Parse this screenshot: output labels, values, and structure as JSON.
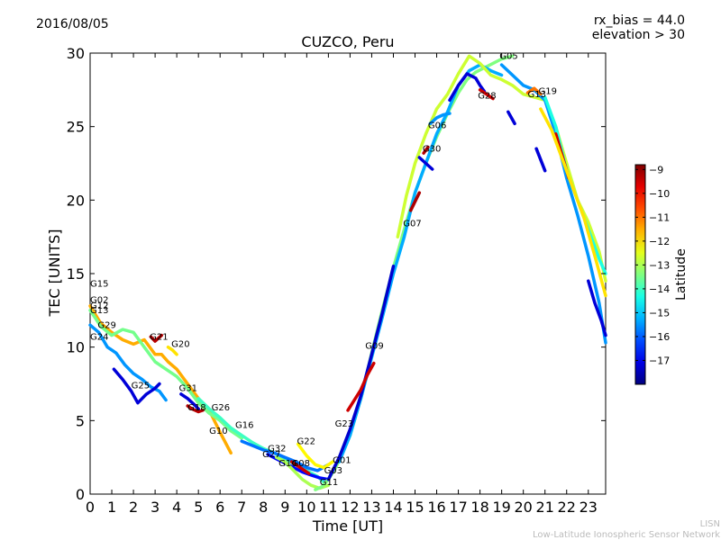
{
  "chart_data": {
    "type": "scatter",
    "title": "CUZCO, Peru",
    "date": "2016/08/05",
    "info": [
      "rx_bias = 44.0",
      "elevation > 30"
    ],
    "xlabel": "Time [UT]",
    "ylabel": "TEC [UNITS]",
    "xlim": [
      0,
      23.8
    ],
    "ylim": [
      0,
      30
    ],
    "xticks": [
      0,
      1,
      2,
      3,
      4,
      5,
      6,
      7,
      8,
      9,
      10,
      11,
      12,
      13,
      14,
      15,
      16,
      17,
      18,
      19,
      20,
      21,
      22,
      23
    ],
    "yticks": [
      0,
      5,
      10,
      15,
      20,
      25,
      30
    ],
    "colorbar": {
      "label": "Latitude",
      "range": [
        -18,
        -8.8
      ],
      "ticks": [
        -9,
        -10,
        -11,
        -12,
        -13,
        -14,
        -15,
        -16,
        -17
      ]
    },
    "watermark": [
      "LISN",
      "Low-Latitude Ionospheric Sensor Network"
    ],
    "series": [
      {
        "x": [
          0,
          0.5,
          1,
          1.5,
          2,
          2.5,
          3,
          3.3,
          3.6,
          4,
          4.5,
          5,
          5.5,
          6,
          6.5
        ],
        "y": [
          12.8,
          11.6,
          11,
          10.5,
          10.2,
          10.5,
          9.5,
          9.5,
          9,
          8.5,
          7.5,
          6.5,
          5.7,
          4.2,
          2.8
        ],
        "lat": -11.5
      },
      {
        "x": [
          0,
          0.5,
          1,
          1.5,
          2,
          2.5,
          3,
          3.5,
          4,
          4.5,
          5,
          5.5,
          6,
          6.5,
          7
        ],
        "y": [
          12.5,
          11.4,
          10.8,
          11.2,
          11,
          10,
          9,
          8.5,
          8,
          7.2,
          6.2,
          5.5,
          5,
          4.3,
          3.8
        ],
        "lat": -13.5
      },
      {
        "x": [
          0,
          0.4,
          0.8,
          1.2,
          1.6,
          2,
          2.4,
          2.8,
          3.2,
          3.5
        ],
        "y": [
          11.5,
          11,
          10,
          9.6,
          8.8,
          8.2,
          7.8,
          7.3,
          7,
          6.4
        ],
        "lat": -15.5
      },
      {
        "x": [
          1.1,
          1.5,
          1.9,
          2.2,
          2.6,
          3,
          3.2
        ],
        "y": [
          8.5,
          7.8,
          7,
          6.2,
          6.8,
          7.2,
          7.5
        ],
        "lat": -17.2
      },
      {
        "x": [
          2.8,
          3,
          3.3
        ],
        "y": [
          10.7,
          10.4,
          10.8
        ],
        "lat": -9.3
      },
      {
        "x": [
          3.6,
          3.8,
          4
        ],
        "y": [
          10,
          9.8,
          9.5
        ],
        "lat": -12
      },
      {
        "x": [
          4.2,
          4.5,
          4.8,
          5
        ],
        "y": [
          6.8,
          6.5,
          6.1,
          5.8
        ],
        "lat": -17.2
      },
      {
        "x": [
          4.5,
          4.7,
          5,
          5.2
        ],
        "y": [
          6,
          5.8,
          5.6,
          5.7
        ],
        "lat": -9.3
      },
      {
        "x": [
          5,
          5.5,
          6,
          6.5,
          7,
          7.5,
          8,
          8.5,
          9,
          9.5,
          10,
          10.5,
          10.8
        ],
        "y": [
          6.5,
          5.8,
          5.2,
          4.5,
          4,
          3.5,
          3.1,
          2.8,
          2.4,
          2,
          1.6,
          1.2,
          0.8
        ],
        "lat": -14
      },
      {
        "x": [
          7,
          7.5,
          8,
          8.5,
          9,
          9.5,
          10,
          10.5,
          11
        ],
        "y": [
          3.6,
          3.3,
          3,
          2.8,
          2.5,
          2.2,
          1.8,
          1.6,
          2
        ],
        "lat": -15.8
      },
      {
        "x": [
          8.2,
          8.6,
          9,
          9.4,
          9.8,
          10.2,
          10.6,
          11
        ],
        "y": [
          2.7,
          2.4,
          2.1,
          1.8,
          1.5,
          1.3,
          1.1,
          1
        ],
        "lat": -16.8
      },
      {
        "x": [
          8.6,
          9,
          9.4,
          9.8,
          10.2,
          10.6,
          11
        ],
        "y": [
          2.5,
          2.2,
          1.6,
          1,
          0.6,
          0.4,
          0.6
        ],
        "lat": -13
      },
      {
        "x": [
          9.3,
          9.7,
          10.1
        ],
        "y": [
          2.2,
          1.8,
          1.4
        ],
        "lat": -9.5
      },
      {
        "x": [
          9.6,
          10,
          10.4,
          10.8,
          11.2
        ],
        "y": [
          3.4,
          2.6,
          2,
          1.8,
          2.2
        ],
        "lat": -12.2
      },
      {
        "x": [
          10.4,
          10.7,
          11,
          11.3,
          11.6,
          12,
          12.5,
          13,
          13.5,
          14,
          14.5,
          15,
          15.5,
          16,
          16.5,
          17,
          17.4,
          17.8,
          18.2,
          18.6,
          19,
          19.5
        ],
        "y": [
          0.3,
          0.5,
          1,
          1.7,
          2.6,
          4,
          6.5,
          9.6,
          12.6,
          15.4,
          18,
          20.5,
          22.5,
          24.3,
          25.9,
          27.3,
          28.2,
          28.7,
          29,
          29.3,
          29.6,
          29.8
        ],
        "lat": -13.4
      },
      {
        "x": [
          11.5,
          12,
          12.5,
          13,
          13.5,
          14,
          14.5,
          15,
          15.5,
          16,
          16.5,
          17,
          17.5,
          18,
          18.5,
          19
        ],
        "y": [
          2.2,
          4,
          6.5,
          9.3,
          12.1,
          15,
          17.5,
          20.5,
          22.5,
          24.5,
          26,
          27.8,
          28.8,
          29.2,
          28.8,
          28.5
        ],
        "lat": -15.3
      },
      {
        "x": [
          11,
          11.5,
          12,
          12.5,
          13,
          13.5,
          14
        ],
        "y": [
          1,
          2.5,
          4.4,
          6.7,
          9.5,
          12.4,
          15.5
        ],
        "lat": -17.3
      },
      {
        "x": [
          11.9,
          12.2,
          12.5,
          12.8,
          13.1
        ],
        "y": [
          5.7,
          6.4,
          7.1,
          8.1,
          8.9
        ],
        "lat": -9.5
      },
      {
        "x": [
          14.2,
          14.6,
          15,
          15.5,
          16,
          16.5,
          17,
          17.5,
          18,
          18.5,
          19,
          19.5,
          20,
          20.5,
          21,
          21.5,
          22,
          22.5,
          23,
          23.5,
          23.8
        ],
        "y": [
          17.5,
          20.3,
          22.5,
          24.5,
          26.2,
          27.2,
          28.6,
          29.8,
          29.3,
          28.5,
          28.2,
          27.8,
          27.2,
          27,
          26.8,
          25,
          22.5,
          20,
          18.5,
          16.5,
          14.5
        ],
        "lat": -12.7
      },
      {
        "x": [
          14.8,
          15.2
        ],
        "y": [
          19.3,
          20.5
        ],
        "lat": -9.2
      },
      {
        "x": [
          15.2,
          15.5,
          15.8
        ],
        "y": [
          22.9,
          22.5,
          22.1
        ],
        "lat": -17.2
      },
      {
        "x": [
          15.4,
          15.6
        ],
        "y": [
          23.2,
          23.6
        ],
        "lat": -9.3
      },
      {
        "x": [
          15.7,
          16,
          16.3,
          16.6
        ],
        "y": [
          25.2,
          25.6,
          25.8,
          25.9
        ],
        "lat": -15.5
      },
      {
        "x": [
          16.6,
          17,
          17.4,
          17.8,
          18,
          18.2
        ],
        "y": [
          26.8,
          27.8,
          28.6,
          28.3,
          27.8,
          27.4
        ],
        "lat": -17.2
      },
      {
        "x": [
          18,
          18.3,
          18.6
        ],
        "y": [
          27.5,
          27.2,
          26.9
        ],
        "lat": -9.5
      },
      {
        "x": [
          19,
          19.5,
          20,
          20.5,
          21,
          21.5,
          22,
          22.5,
          23,
          23.5,
          23.8
        ],
        "y": [
          29.2,
          28.5,
          27.8,
          27.5,
          26.8,
          24.5,
          21.5,
          19,
          16.2,
          13,
          10.3
        ],
        "lat": -15.5
      },
      {
        "x": [
          20.2,
          20.5,
          20.8
        ],
        "y": [
          27.3,
          27.6,
          27.2
        ],
        "lat": -11
      },
      {
        "x": [
          21,
          21.5,
          22,
          22.5,
          23,
          23.5,
          23.8
        ],
        "y": [
          27,
          25,
          22,
          20,
          18,
          16,
          15
        ],
        "lat": -14.3
      },
      {
        "x": [
          21.5,
          21.8,
          22.1
        ],
        "y": [
          24.5,
          23,
          21.5
        ],
        "lat": -9.5
      },
      {
        "x": [
          19.3,
          19.6
        ],
        "y": [
          26,
          25.2
        ],
        "lat": -17.2
      },
      {
        "x": [
          20.6,
          21
        ],
        "y": [
          23.5,
          22
        ],
        "lat": -17.2
      },
      {
        "x": [
          23,
          23.3,
          23.6,
          23.8
        ],
        "y": [
          14.5,
          13,
          11.8,
          10.8
        ],
        "lat": -17.2
      },
      {
        "x": [
          20.8,
          21.3,
          21.8,
          22.3,
          22.8,
          23.3,
          23.8
        ],
        "y": [
          26.2,
          24.8,
          22.8,
          20.8,
          18.8,
          16.2,
          13.5
        ],
        "lat": -12
      }
    ],
    "sat_labels": [
      {
        "text": "G15",
        "x": 0.0,
        "y": 14.1
      },
      {
        "text": "G02",
        "x": 0.0,
        "y": 13.0
      },
      {
        "text": "G12",
        "x": 0.0,
        "y": 12.6
      },
      {
        "text": "G13",
        "x": 0.0,
        "y": 12.3
      },
      {
        "text": "G29",
        "x": 0.35,
        "y": 11.3
      },
      {
        "text": "G24",
        "x": 0.0,
        "y": 10.5
      },
      {
        "text": "G21",
        "x": 2.75,
        "y": 10.5
      },
      {
        "text": "G20",
        "x": 3.75,
        "y": 10.0
      },
      {
        "text": "G25",
        "x": 1.9,
        "y": 7.2
      },
      {
        "text": "G31",
        "x": 4.1,
        "y": 7.0
      },
      {
        "text": "G18",
        "x": 4.5,
        "y": 5.7
      },
      {
        "text": "G26",
        "x": 5.6,
        "y": 5.7
      },
      {
        "text": "G16",
        "x": 6.7,
        "y": 4.5
      },
      {
        "text": "G10",
        "x": 5.5,
        "y": 4.1
      },
      {
        "text": "G32",
        "x": 8.2,
        "y": 2.9
      },
      {
        "text": "G27",
        "x": 7.95,
        "y": 2.5
      },
      {
        "text": "G14",
        "x": 8.7,
        "y": 1.9
      },
      {
        "text": "G08",
        "x": 9.3,
        "y": 1.9
      },
      {
        "text": "G22",
        "x": 9.55,
        "y": 3.4
      },
      {
        "text": "G01",
        "x": 11.2,
        "y": 2.1
      },
      {
        "text": "G03",
        "x": 10.8,
        "y": 1.4
      },
      {
        "text": "G11",
        "x": 10.6,
        "y": 0.6
      },
      {
        "text": "G23",
        "x": 11.3,
        "y": 4.6
      },
      {
        "text": "G09",
        "x": 12.7,
        "y": 9.9
      },
      {
        "text": "G07",
        "x": 14.45,
        "y": 18.2
      },
      {
        "text": "G30",
        "x": 15.35,
        "y": 23.3
      },
      {
        "text": "G06",
        "x": 15.6,
        "y": 24.9
      },
      {
        "text": "G05",
        "x": 18.9,
        "y": 29.6
      },
      {
        "text": "G28",
        "x": 17.9,
        "y": 26.9
      },
      {
        "text": "G19",
        "x": 20.7,
        "y": 27.2
      },
      {
        "text": "G13",
        "x": 20.2,
        "y": 27.0
      }
    ]
  }
}
